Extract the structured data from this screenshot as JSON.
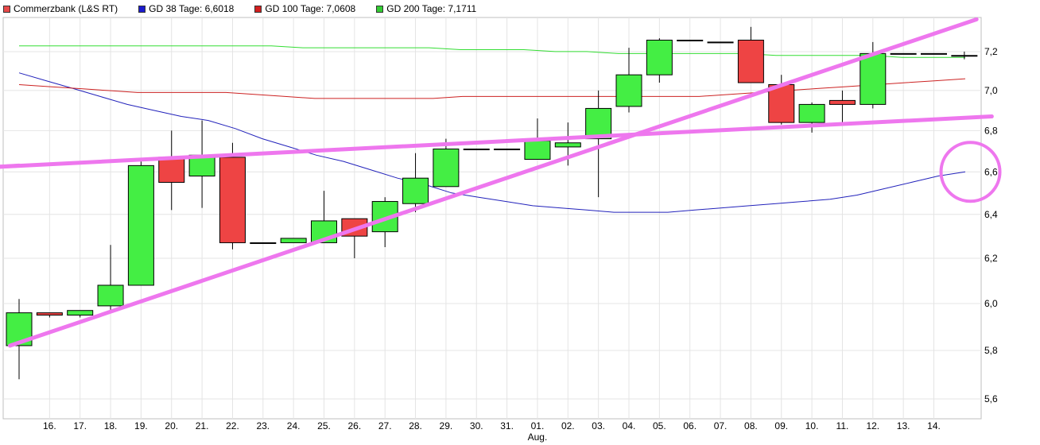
{
  "legend": [
    {
      "label": "Commerzbank (L&S RT)",
      "color": "#e84a4a"
    },
    {
      "label": "GD 38 Tage: 6,6018",
      "color": "#1a1acd"
    },
    {
      "label": "GD 100 Tage: 7,0608",
      "color": "#d21f1f"
    },
    {
      "label": "GD 200 Tage: 7,1711",
      "color": "#33cc33"
    }
  ],
  "chart_data": {
    "type": "candlestick",
    "title": "",
    "x_ticks": [
      "16.",
      "17.",
      "18.",
      "19.",
      "20.",
      "21.",
      "22.",
      "23.",
      "24.",
      "25.",
      "26.",
      "27.",
      "28.",
      "29.",
      "30.",
      "31.",
      "01.",
      "02.",
      "03.",
      "04.",
      "05.",
      "06.",
      "07.",
      "08.",
      "09.",
      "10.",
      "11.",
      "12.",
      "13.",
      "14."
    ],
    "x_sublabel": {
      "under": "01.",
      "text": "Aug."
    },
    "y_ticks": [
      "5,6",
      "5,8",
      "6,0",
      "6,2",
      "6,4",
      "6,6",
      "6,8",
      "7,0",
      "7,2"
    ],
    "y_tick_values": [
      5.6,
      5.8,
      6.0,
      6.2,
      6.4,
      6.6,
      6.8,
      7.0,
      7.2
    ],
    "ylim": [
      5.52,
      7.38
    ],
    "y_scale": "log",
    "grid": true,
    "colors": {
      "up": "#44ee44",
      "down": "#ee4444",
      "gd38": "#2222bb",
      "gd100": "#cc2222",
      "gd200": "#33dd33",
      "trendline": "#ee77ee"
    },
    "candles": [
      {
        "o": 5.82,
        "h": 6.02,
        "l": 5.68,
        "c": 5.96
      },
      {
        "o": 5.96,
        "h": 5.96,
        "l": 5.94,
        "c": 5.95
      },
      {
        "o": 5.95,
        "h": 5.97,
        "l": 5.94,
        "c": 5.97
      },
      {
        "o": 5.99,
        "h": 6.26,
        "l": 5.97,
        "c": 6.08
      },
      {
        "o": 6.08,
        "h": 6.65,
        "l": 6.08,
        "c": 6.63
      },
      {
        "o": 6.67,
        "h": 6.8,
        "l": 6.42,
        "c": 6.55
      },
      {
        "o": 6.58,
        "h": 6.85,
        "l": 6.43,
        "c": 6.68
      },
      {
        "o": 6.67,
        "h": 6.74,
        "l": 6.24,
        "c": 6.27
      },
      {
        "o": 6.27,
        "h": 6.27,
        "l": 6.27,
        "c": 6.27
      },
      {
        "o": 6.27,
        "h": 6.29,
        "l": 6.27,
        "c": 6.29
      },
      {
        "o": 6.27,
        "h": 6.51,
        "l": 6.27,
        "c": 6.37
      },
      {
        "o": 6.38,
        "h": 6.38,
        "l": 6.2,
        "c": 6.3
      },
      {
        "o": 6.32,
        "h": 6.48,
        "l": 6.25,
        "c": 6.46
      },
      {
        "o": 6.45,
        "h": 6.69,
        "l": 6.41,
        "c": 6.57
      },
      {
        "o": 6.53,
        "h": 6.76,
        "l": 6.53,
        "c": 6.71
      },
      {
        "o": 6.71,
        "h": 6.71,
        "l": 6.71,
        "c": 6.71
      },
      {
        "o": 6.71,
        "h": 6.71,
        "l": 6.71,
        "c": 6.71
      },
      {
        "o": 6.66,
        "h": 6.86,
        "l": 6.66,
        "c": 6.75
      },
      {
        "o": 6.72,
        "h": 6.84,
        "l": 6.63,
        "c": 6.74
      },
      {
        "o": 6.76,
        "h": 7.0,
        "l": 6.48,
        "c": 6.91
      },
      {
        "o": 6.92,
        "h": 7.22,
        "l": 6.89,
        "c": 7.08
      },
      {
        "o": 7.08,
        "h": 7.27,
        "l": 7.04,
        "c": 7.26
      },
      {
        "o": 7.26,
        "h": 7.26,
        "l": 7.26,
        "c": 7.26
      },
      {
        "o": 7.25,
        "h": 7.25,
        "l": 7.25,
        "c": 7.25
      },
      {
        "o": 7.26,
        "h": 7.33,
        "l": 7.04,
        "c": 7.04
      },
      {
        "o": 7.03,
        "h": 7.08,
        "l": 6.83,
        "c": 6.84
      },
      {
        "o": 6.84,
        "h": 6.94,
        "l": 6.79,
        "c": 6.93
      },
      {
        "o": 6.95,
        "h": 7.0,
        "l": 6.84,
        "c": 6.93
      },
      {
        "o": 6.93,
        "h": 7.25,
        "l": 6.91,
        "c": 7.19
      },
      {
        "o": 7.19,
        "h": 7.19,
        "l": 7.19,
        "c": 7.19
      },
      {
        "o": 7.19,
        "h": 7.19,
        "l": 7.19,
        "c": 7.19
      },
      {
        "o": 7.18,
        "h": 7.2,
        "l": 7.16,
        "c": 7.18
      }
    ],
    "series": [
      {
        "key": "gd38",
        "name": "GD 38 Tage",
        "values": [
          7.09,
          7.05,
          7.01,
          6.97,
          6.93,
          6.9,
          6.87,
          6.85,
          6.81,
          6.76,
          6.72,
          6.68,
          6.65,
          6.61,
          6.57,
          6.54,
          6.5,
          6.48,
          6.46,
          6.44,
          6.43,
          6.42,
          6.41,
          6.41,
          6.41,
          6.42,
          6.43,
          6.44,
          6.45,
          6.46,
          6.47,
          6.49,
          6.52,
          6.55,
          6.58,
          6.6
        ]
      },
      {
        "key": "gd100",
        "name": "GD 100 Tage",
        "values": [
          7.03,
          7.02,
          7.01,
          7.0,
          6.99,
          6.99,
          6.99,
          6.99,
          6.98,
          6.97,
          6.96,
          6.96,
          6.96,
          6.96,
          6.96,
          6.97,
          6.97,
          6.97,
          6.97,
          6.97,
          6.97,
          6.97,
          6.97,
          6.97,
          6.98,
          6.99,
          7.0,
          7.01,
          7.02,
          7.03,
          7.04,
          7.05,
          7.06
        ]
      },
      {
        "key": "gd200",
        "name": "GD 200 Tage",
        "values": [
          7.23,
          7.23,
          7.23,
          7.23,
          7.23,
          7.23,
          7.23,
          7.23,
          7.23,
          7.22,
          7.22,
          7.22,
          7.22,
          7.22,
          7.21,
          7.21,
          7.21,
          7.2,
          7.2,
          7.19,
          7.19,
          7.19,
          7.19,
          7.19,
          7.18,
          7.18,
          7.18,
          7.18,
          7.17,
          7.17,
          7.17
        ]
      }
    ],
    "trendlines": [
      {
        "from": [
          -0.3,
          5.82
        ],
        "to": [
          31.4,
          7.37
        ]
      },
      {
        "from": [
          -1.2,
          6.62
        ],
        "to": [
          31.9,
          6.87
        ]
      },
      {
        "from": [
          -1.2,
          6.62
        ],
        "to": [
          0,
          6.63
        ]
      }
    ],
    "circle_marker": {
      "x": 31.2,
      "y": 6.6
    }
  }
}
